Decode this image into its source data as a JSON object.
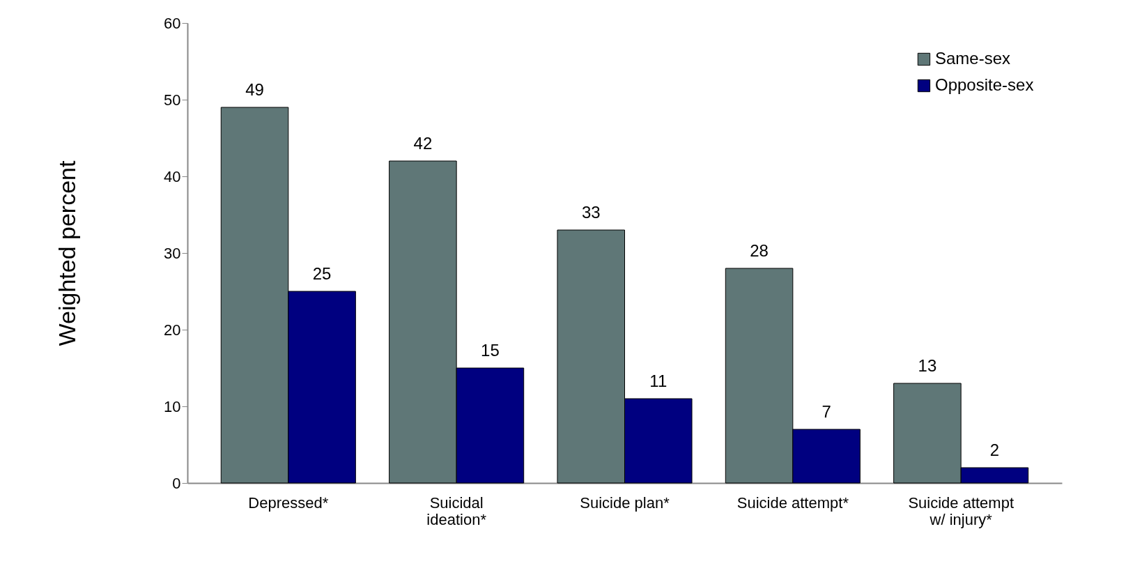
{
  "chart_data": {
    "type": "bar",
    "ylabel": "Weighted percent",
    "categories": [
      "Depressed*",
      "Suicidal ideation*",
      "Suicide plan*",
      "Suicide attempt*",
      "Suicide attempt w/ injury*"
    ],
    "series": [
      {
        "name": "Same-sex",
        "color": "#5f7777",
        "values": [
          49,
          42,
          33,
          28,
          13
        ]
      },
      {
        "name": "Opposite-sex",
        "color": "#000080",
        "values": [
          25,
          15,
          11,
          7,
          2
        ]
      }
    ],
    "ylim": [
      0,
      60
    ],
    "yticks": [
      0,
      10,
      20,
      30,
      40,
      50,
      60
    ],
    "grid": false,
    "legend": "top right",
    "data_labels": true
  }
}
